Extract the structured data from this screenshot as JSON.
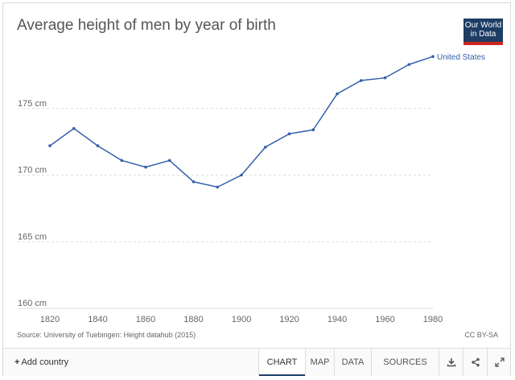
{
  "title": "Average height of men by year of birth",
  "logo": {
    "line1": "Our World",
    "line2": "in Data",
    "bg_color": "#1d3d63",
    "accent_color": "#ce261e"
  },
  "source": "Source: University of Tuebingen: Height datahub (2015)",
  "license": "CC BY-SA",
  "toolbar": {
    "add_country": "Add country",
    "tabs": [
      "CHART",
      "MAP",
      "DATA",
      "SOURCES"
    ],
    "active_tab": "CHART",
    "icons": [
      "download-icon",
      "share-icon",
      "fullscreen-icon"
    ]
  },
  "chart_data": {
    "type": "line",
    "title": "Average height of men by year of birth",
    "xlabel": "",
    "ylabel": "",
    "x": [
      1820,
      1830,
      1840,
      1850,
      1860,
      1870,
      1880,
      1890,
      1900,
      1910,
      1920,
      1930,
      1940,
      1950,
      1960,
      1970,
      1980
    ],
    "series": [
      {
        "name": "United States",
        "color": "#3360a9",
        "values": [
          172.2,
          173.5,
          172.2,
          171.1,
          170.6,
          171.1,
          169.5,
          169.1,
          170.0,
          172.1,
          173.1,
          173.4,
          176.1,
          177.1,
          177.3,
          178.3,
          178.9
        ]
      }
    ],
    "xlim": [
      1820,
      1980
    ],
    "ylim": [
      160,
      180
    ],
    "x_ticks": [
      "1820",
      "1840",
      "1860",
      "1880",
      "1900",
      "1920",
      "1940",
      "1960",
      "1980"
    ],
    "y_ticks": [
      "160 cm",
      "165 cm",
      "170 cm",
      "175 cm"
    ],
    "grid": true,
    "legend": "end-of-line label"
  }
}
